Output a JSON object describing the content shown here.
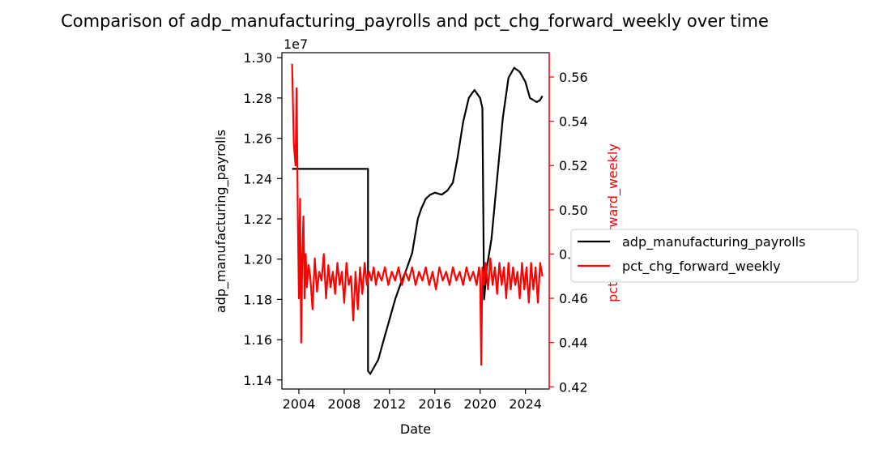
{
  "chart_data": {
    "type": "line",
    "title": "Comparison of adp_manufacturing_payrolls and pct_chg_forward_weekly over time",
    "xlabel": "Date",
    "ylabel_left": "adp_manufacturing_payrolls",
    "ylabel_right": "pct_chg_forward_weekly",
    "y_left_offset_label": "1e7",
    "x_range": [
      2002.5,
      2026.1
    ],
    "x_ticks": [
      2004,
      2008,
      2012,
      2016,
      2020,
      2024
    ],
    "x_tick_labels": [
      "2004",
      "2008",
      "2012",
      "2016",
      "2020",
      "2024"
    ],
    "y_left_range": [
      1.1355,
      1.3025
    ],
    "y_left_ticks": [
      1.14,
      1.16,
      1.18,
      1.2,
      1.22,
      1.24,
      1.26,
      1.28,
      1.3
    ],
    "y_left_tick_labels": [
      "1.14",
      "1.16",
      "1.18",
      "1.20",
      "1.22",
      "1.24",
      "1.26",
      "1.28",
      "1.30"
    ],
    "y_right_range": [
      0.419,
      0.571
    ],
    "y_right_ticks": [
      0.42,
      0.44,
      0.46,
      0.48,
      0.5,
      0.52,
      0.54,
      0.56
    ],
    "y_right_tick_labels": [
      "0.42",
      "0.44",
      "0.46",
      "0.48",
      "0.50",
      "0.52",
      "0.54",
      "0.56"
    ],
    "grid": false,
    "legend_position": "right, outside",
    "series": [
      {
        "name": "adp_manufacturing_payrolls",
        "axis": "left",
        "color": "#000000",
        "scale_note": "values shown in units of 1e7",
        "points": [
          [
            2003.4,
            1.2448
          ],
          [
            2010.1,
            1.2448
          ],
          [
            2010.1,
            1.1445
          ],
          [
            2010.3,
            1.143
          ],
          [
            2010.6,
            1.146
          ],
          [
            2011.0,
            1.15
          ],
          [
            2011.5,
            1.16
          ],
          [
            2012.0,
            1.17
          ],
          [
            2012.5,
            1.18
          ],
          [
            2013.0,
            1.188
          ],
          [
            2013.5,
            1.195
          ],
          [
            2014.0,
            1.203
          ],
          [
            2014.5,
            1.22
          ],
          [
            2014.8,
            1.225
          ],
          [
            2015.2,
            1.23
          ],
          [
            2015.6,
            1.232
          ],
          [
            2016.0,
            1.233
          ],
          [
            2016.6,
            1.232
          ],
          [
            2017.1,
            1.234
          ],
          [
            2017.6,
            1.238
          ],
          [
            2018.0,
            1.25
          ],
          [
            2018.5,
            1.268
          ],
          [
            2019.0,
            1.28
          ],
          [
            2019.5,
            1.284
          ],
          [
            2020.0,
            1.28
          ],
          [
            2020.2,
            1.275
          ],
          [
            2020.35,
            1.18
          ],
          [
            2020.6,
            1.196
          ],
          [
            2021.0,
            1.21
          ],
          [
            2021.5,
            1.24
          ],
          [
            2022.0,
            1.27
          ],
          [
            2022.5,
            1.29
          ],
          [
            2023.0,
            1.295
          ],
          [
            2023.5,
            1.293
          ],
          [
            2024.0,
            1.288
          ],
          [
            2024.4,
            1.28
          ],
          [
            2024.7,
            1.279
          ],
          [
            2025.0,
            1.278
          ],
          [
            2025.3,
            1.279
          ],
          [
            2025.5,
            1.281
          ]
        ]
      },
      {
        "name": "pct_chg_forward_weekly",
        "axis": "right",
        "color": "#ff0000",
        "points": [
          [
            2003.4,
            0.566
          ],
          [
            2003.55,
            0.53
          ],
          [
            2003.7,
            0.52
          ],
          [
            2003.8,
            0.555
          ],
          [
            2003.9,
            0.5
          ],
          [
            2004.0,
            0.46
          ],
          [
            2004.1,
            0.505
          ],
          [
            2004.2,
            0.44
          ],
          [
            2004.3,
            0.48
          ],
          [
            2004.4,
            0.497
          ],
          [
            2004.5,
            0.46
          ],
          [
            2004.6,
            0.48
          ],
          [
            2004.7,
            0.465
          ],
          [
            2004.85,
            0.475
          ],
          [
            2005.0,
            0.47
          ],
          [
            2005.2,
            0.455
          ],
          [
            2005.4,
            0.478
          ],
          [
            2005.6,
            0.463
          ],
          [
            2005.8,
            0.472
          ],
          [
            2006.0,
            0.468
          ],
          [
            2006.2,
            0.48
          ],
          [
            2006.4,
            0.46
          ],
          [
            2006.6,
            0.475
          ],
          [
            2006.8,
            0.465
          ],
          [
            2007.0,
            0.472
          ],
          [
            2007.2,
            0.462
          ],
          [
            2007.4,
            0.476
          ],
          [
            2007.6,
            0.466
          ],
          [
            2007.8,
            0.472
          ],
          [
            2008.0,
            0.458
          ],
          [
            2008.2,
            0.476
          ],
          [
            2008.4,
            0.466
          ],
          [
            2008.6,
            0.47
          ],
          [
            2008.8,
            0.45
          ],
          [
            2009.0,
            0.472
          ],
          [
            2009.2,
            0.455
          ],
          [
            2009.4,
            0.474
          ],
          [
            2009.6,
            0.462
          ],
          [
            2009.8,
            0.476
          ],
          [
            2010.0,
            0.466
          ],
          [
            2010.2,
            0.472
          ],
          [
            2010.4,
            0.468
          ],
          [
            2010.6,
            0.474
          ],
          [
            2010.8,
            0.466
          ],
          [
            2011.0,
            0.472
          ],
          [
            2011.3,
            0.468
          ],
          [
            2011.6,
            0.474
          ],
          [
            2011.9,
            0.466
          ],
          [
            2012.2,
            0.472
          ],
          [
            2012.5,
            0.468
          ],
          [
            2012.8,
            0.474
          ],
          [
            2013.1,
            0.466
          ],
          [
            2013.4,
            0.472
          ],
          [
            2013.7,
            0.468
          ],
          [
            2014.0,
            0.474
          ],
          [
            2014.3,
            0.466
          ],
          [
            2014.6,
            0.472
          ],
          [
            2014.9,
            0.468
          ],
          [
            2015.2,
            0.474
          ],
          [
            2015.5,
            0.466
          ],
          [
            2015.8,
            0.472
          ],
          [
            2016.1,
            0.464
          ],
          [
            2016.4,
            0.474
          ],
          [
            2016.7,
            0.468
          ],
          [
            2017.0,
            0.472
          ],
          [
            2017.3,
            0.466
          ],
          [
            2017.6,
            0.474
          ],
          [
            2017.9,
            0.468
          ],
          [
            2018.2,
            0.472
          ],
          [
            2018.5,
            0.466
          ],
          [
            2018.8,
            0.474
          ],
          [
            2019.1,
            0.468
          ],
          [
            2019.4,
            0.472
          ],
          [
            2019.7,
            0.466
          ],
          [
            2019.9,
            0.474
          ],
          [
            2020.0,
            0.47
          ],
          [
            2020.1,
            0.43
          ],
          [
            2020.2,
            0.474
          ],
          [
            2020.35,
            0.466
          ],
          [
            2020.5,
            0.476
          ],
          [
            2020.7,
            0.464
          ],
          [
            2020.9,
            0.478
          ],
          [
            2021.1,
            0.466
          ],
          [
            2021.3,
            0.474
          ],
          [
            2021.5,
            0.462
          ],
          [
            2021.7,
            0.476
          ],
          [
            2021.9,
            0.466
          ],
          [
            2022.1,
            0.474
          ],
          [
            2022.3,
            0.46
          ],
          [
            2022.5,
            0.476
          ],
          [
            2022.7,
            0.464
          ],
          [
            2022.9,
            0.474
          ],
          [
            2023.1,
            0.466
          ],
          [
            2023.3,
            0.472
          ],
          [
            2023.5,
            0.46
          ],
          [
            2023.7,
            0.476
          ],
          [
            2023.9,
            0.464
          ],
          [
            2024.1,
            0.474
          ],
          [
            2024.3,
            0.458
          ],
          [
            2024.5,
            0.476
          ],
          [
            2024.7,
            0.464
          ],
          [
            2024.9,
            0.474
          ],
          [
            2025.1,
            0.458
          ],
          [
            2025.3,
            0.476
          ],
          [
            2025.5,
            0.47
          ]
        ]
      }
    ]
  }
}
